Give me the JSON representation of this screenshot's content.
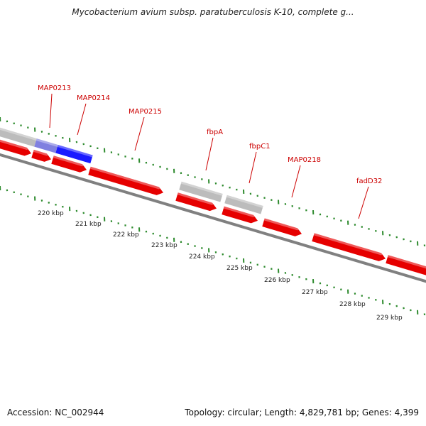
{
  "title": "Mycobacterium avium subsp. paratuberculosis K-10, complete g...",
  "footer": {
    "accession": "Accession: NC_002944",
    "summary": "Topology: circular; Length: 4,829,781 bp; Genes: 4,399"
  },
  "colors": {
    "gene_fwd": "#e60000",
    "gene_gray": "#bcbcbc",
    "gene_blue": "#1a1aff",
    "backbone": "#808080",
    "tick": "#2e8b2e",
    "label_red": "#cc0000",
    "kbp_text": "#222222"
  },
  "kbp_labels": [
    "220 kbp",
    "221 kbp",
    "222 kbp",
    "223 kbp",
    "224 kbp",
    "225 kbp",
    "226 kbp",
    "227 kbp",
    "228 kbp",
    "229 kbp"
  ],
  "gene_labels": [
    "MAP0213",
    "MAP0214",
    "MAP0215",
    "fbpA",
    "fbpC1",
    "MAP0218",
    "fadD32"
  ]
}
